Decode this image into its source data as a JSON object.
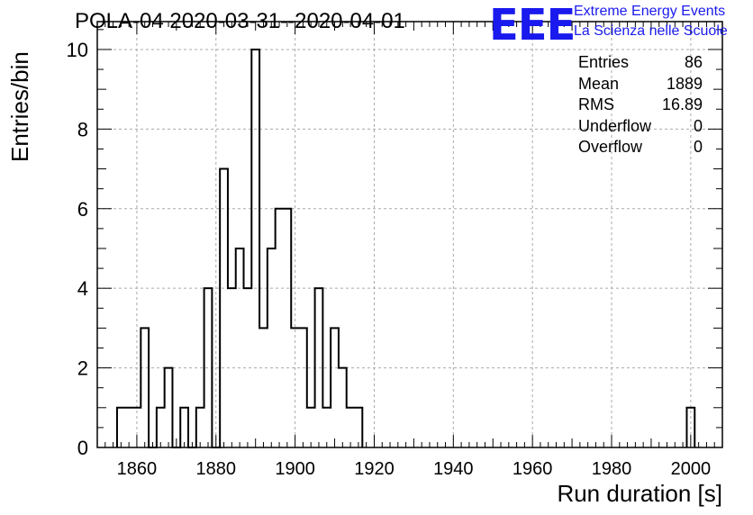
{
  "chart_data": {
    "type": "bar",
    "title": "POLA-04 2020-03-31--2020-04-01",
    "xlabel": "Run duration [s]",
    "ylabel": "Entries/bin",
    "xlim": [
      1850,
      2008
    ],
    "ylim": [
      0,
      10.7
    ],
    "grid": true,
    "bin_width": 2,
    "x_ticks": [
      1860,
      1880,
      1900,
      1920,
      1940,
      1960,
      1980,
      2000
    ],
    "y_ticks": [
      0,
      2,
      4,
      6,
      8,
      10
    ],
    "bins": [
      {
        "x": 1856,
        "value": 1
      },
      {
        "x": 1858,
        "value": 1
      },
      {
        "x": 1860,
        "value": 1
      },
      {
        "x": 1862,
        "value": 3
      },
      {
        "x": 1864,
        "value": 0
      },
      {
        "x": 1866,
        "value": 1
      },
      {
        "x": 1868,
        "value": 2
      },
      {
        "x": 1870,
        "value": 0
      },
      {
        "x": 1872,
        "value": 1
      },
      {
        "x": 1874,
        "value": 0
      },
      {
        "x": 1876,
        "value": 1
      },
      {
        "x": 1878,
        "value": 4
      },
      {
        "x": 1880,
        "value": 0
      },
      {
        "x": 1882,
        "value": 7
      },
      {
        "x": 1884,
        "value": 4
      },
      {
        "x": 1886,
        "value": 5
      },
      {
        "x": 1888,
        "value": 4
      },
      {
        "x": 1890,
        "value": 10
      },
      {
        "x": 1892,
        "value": 3
      },
      {
        "x": 1894,
        "value": 5
      },
      {
        "x": 1896,
        "value": 6
      },
      {
        "x": 1898,
        "value": 6
      },
      {
        "x": 1900,
        "value": 3
      },
      {
        "x": 1902,
        "value": 3
      },
      {
        "x": 1904,
        "value": 1
      },
      {
        "x": 1906,
        "value": 4
      },
      {
        "x": 1908,
        "value": 1
      },
      {
        "x": 1910,
        "value": 3
      },
      {
        "x": 1912,
        "value": 2
      },
      {
        "x": 1914,
        "value": 1
      },
      {
        "x": 1916,
        "value": 1
      },
      {
        "x": 2000,
        "value": 1
      }
    ]
  },
  "stats": [
    {
      "label": "Entries",
      "value": "86"
    },
    {
      "label": "Mean",
      "value": "1889"
    },
    {
      "label": "RMS",
      "value": "16.89"
    },
    {
      "label": "Underflow",
      "value": "0"
    },
    {
      "label": "Overflow",
      "value": "0"
    }
  ],
  "logo": {
    "mark": "EEE",
    "line1": "Extreme Energy Events",
    "line2": "La Scienza nelle Scuole"
  },
  "colors": {
    "logo": "#1a1aee",
    "histogram": "#000000",
    "grid": "#aaaaaa"
  }
}
